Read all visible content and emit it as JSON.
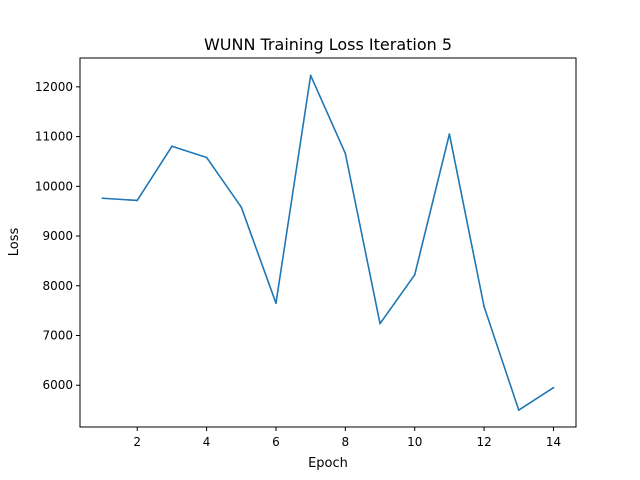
{
  "colors": {
    "series": "#1f77b4",
    "background": "#ffffff",
    "axis": "#000000"
  },
  "chart_data": {
    "type": "line",
    "title": "WUNN Training Loss Iteration 5",
    "xlabel": "Epoch",
    "ylabel": "Loss",
    "grid": false,
    "legend": "none",
    "xlim": [
      0.35,
      14.65
    ],
    "ylim": [
      5160,
      12580
    ],
    "xticks": [
      2,
      4,
      6,
      8,
      10,
      12,
      14
    ],
    "yticks": [
      6000,
      7000,
      8000,
      9000,
      10000,
      11000,
      12000
    ],
    "series": [
      {
        "x": [
          1,
          2,
          3,
          4,
          5,
          6,
          7,
          8,
          9,
          10,
          11,
          12,
          13,
          14
        ],
        "values": [
          9760,
          9715,
          10805,
          10580,
          9580,
          7650,
          12230,
          10660,
          7240,
          8220,
          11050,
          7580,
          5500,
          5950
        ]
      }
    ]
  }
}
